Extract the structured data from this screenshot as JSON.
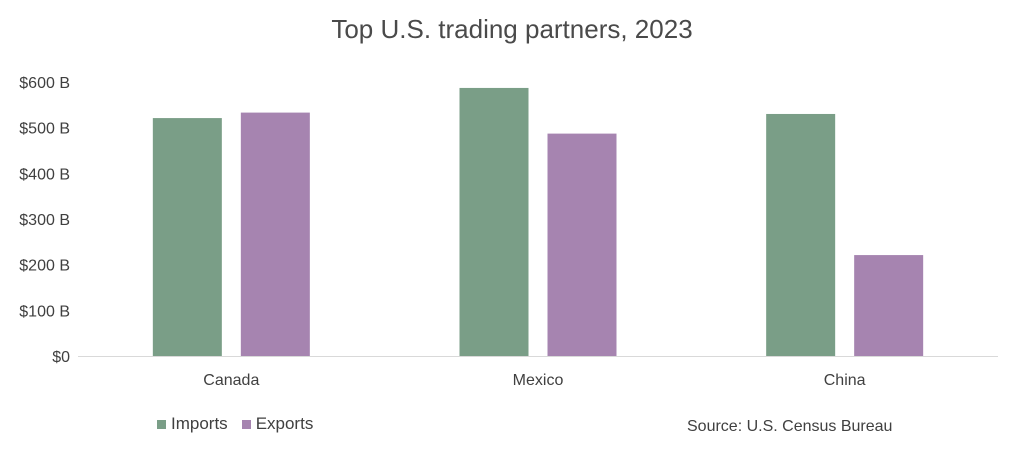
{
  "chart_data": {
    "type": "bar",
    "title": "Top U.S. trading partners, 2023",
    "categories": [
      "Canada",
      "Mexico",
      "China"
    ],
    "series": [
      {
        "name": "Imports",
        "values": [
          521,
          587,
          530
        ],
        "color": "#7a9e87"
      },
      {
        "name": "Exports",
        "values": [
          533,
          487,
          221
        ],
        "color": "#a684b0"
      }
    ],
    "y_tick_labels": [
      "$0",
      "$100 B",
      "$200 B",
      "$300 B",
      "$400 B",
      "$500 B",
      "$600 B"
    ],
    "y_ticks": [
      0,
      100,
      200,
      300,
      400,
      500,
      600
    ],
    "ylim": [
      0,
      600
    ],
    "grid": false,
    "legend_position": "bottom-left",
    "source": "Source: U.S. Census Bureau"
  }
}
